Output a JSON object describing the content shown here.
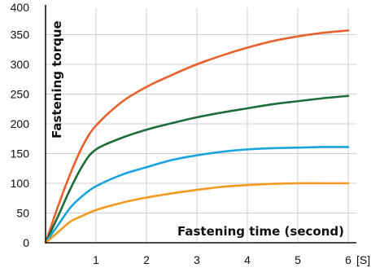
{
  "chart_data": {
    "type": "line",
    "xlabel": "Fastening time (second)",
    "ylabel": "Fastening torque",
    "x_unit": "[S]",
    "xlim": [
      0,
      6
    ],
    "ylim": [
      0,
      400
    ],
    "x_ticks": [
      1,
      2,
      3,
      4,
      5,
      6
    ],
    "y_ticks": [
      0,
      50,
      100,
      150,
      200,
      250,
      300,
      350,
      400
    ],
    "grid": true,
    "x": [
      0,
      0.25,
      0.5,
      0.75,
      1,
      1.5,
      2,
      2.5,
      3,
      3.5,
      4,
      4.5,
      5,
      5.5,
      6
    ],
    "series": [
      {
        "color": "#e8612c",
        "values": [
          0,
          62,
          118,
          165,
          197,
          236,
          262,
          282,
          300,
          315,
          328,
          339,
          347,
          353,
          357
        ]
      },
      {
        "color": "#1b6d3a",
        "values": [
          0,
          45,
          92,
          132,
          157,
          176,
          190,
          201,
          211,
          219,
          226,
          233,
          238,
          243,
          247
        ]
      },
      {
        "color": "#1aa3dc",
        "values": [
          0,
          30,
          60,
          80,
          95,
          114,
          127,
          139,
          147,
          153,
          157,
          159,
          160,
          161,
          161
        ]
      },
      {
        "color": "#f29a1f",
        "values": [
          0,
          18,
          36,
          46,
          55,
          67,
          76,
          83,
          89,
          94,
          97,
          99,
          100,
          100,
          100
        ]
      }
    ]
  }
}
